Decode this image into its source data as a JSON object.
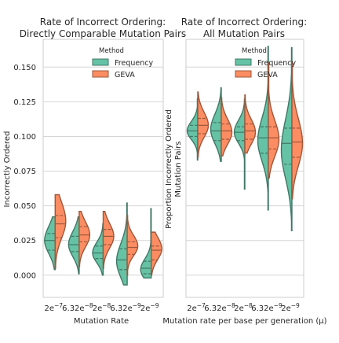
{
  "chart_data": [
    {
      "type": "violin",
      "split": true,
      "title_lines": [
        "Rate of Incorrect Ordering:",
        "Directly Comparable Mutation Pairs"
      ],
      "xlabel": "Mutation Rate",
      "ylabel": "Incorrectly Ordered",
      "categories": [
        "2e-7",
        "6.32e-8",
        "2e-8",
        "6.32e-9",
        "2e-9"
      ],
      "ylim": [
        -0.016,
        0.17
      ],
      "yticks": [
        "0.000",
        "0.025",
        "0.050",
        "0.075",
        "0.100",
        "0.125",
        "0.150"
      ],
      "ytick_values": [
        0.0,
        0.025,
        0.05,
        0.075,
        0.1,
        0.125,
        0.15
      ],
      "show_ytick_labels": true,
      "legend": {
        "title": "Method",
        "placement": "top-right"
      },
      "series": [
        {
          "name": "Frequency",
          "color": "#66c2a5",
          "violins": [
            {
              "min": 0.004,
              "q1": 0.018,
              "median": 0.025,
              "q3": 0.03,
              "max": 0.042,
              "mode": 0.025
            },
            {
              "min": 0.001,
              "q1": 0.017,
              "median": 0.022,
              "q3": 0.028,
              "max": 0.042,
              "mode": 0.022
            },
            {
              "min": 0.0,
              "q1": 0.012,
              "median": 0.016,
              "q3": 0.021,
              "max": 0.037,
              "mode": 0.016
            },
            {
              "min": -0.007,
              "q1": 0.004,
              "median": 0.011,
              "q3": 0.019,
              "max": 0.052,
              "mode": 0.01
            },
            {
              "min": -0.002,
              "q1": 0.001,
              "median": 0.005,
              "q3": 0.01,
              "max": 0.048,
              "mode": 0.004
            }
          ]
        },
        {
          "name": "GEVA",
          "color": "#fc8d62",
          "violins": [
            {
              "min": 0.005,
              "q1": 0.027,
              "median": 0.037,
              "q3": 0.043,
              "max": 0.058,
              "mode": 0.039
            },
            {
              "min": 0.006,
              "q1": 0.024,
              "median": 0.029,
              "q3": 0.035,
              "max": 0.046,
              "mode": 0.029
            },
            {
              "min": 0.005,
              "q1": 0.022,
              "median": 0.028,
              "q3": 0.033,
              "max": 0.046,
              "mode": 0.028
            },
            {
              "min": 0.0,
              "q1": 0.015,
              "median": 0.02,
              "q3": 0.024,
              "max": 0.043,
              "mode": 0.021
            },
            {
              "min": 0.0,
              "q1": 0.011,
              "median": 0.018,
              "q3": 0.021,
              "max": 0.031,
              "mode": 0.019
            }
          ]
        }
      ]
    },
    {
      "type": "violin",
      "split": true,
      "title_lines": [
        "Rate of Incorrect Ordering:",
        "All Mutation Pairs"
      ],
      "xlabel": "Mutation rate per base per generation (μ)",
      "ylabel_lines": [
        "Proportion Incorrectly Ordered",
        "Mutation Pairs"
      ],
      "categories": [
        "2e-7",
        "6.32e-8",
        "2e-8",
        "6.32e-9",
        "2e-9"
      ],
      "ylim": [
        -0.016,
        0.17
      ],
      "ytick_values": [
        0.0,
        0.025,
        0.05,
        0.075,
        0.1,
        0.125,
        0.15
      ],
      "show_ytick_labels": false,
      "legend": {
        "title": "Method",
        "placement": "top-right"
      },
      "series": [
        {
          "name": "Frequency",
          "color": "#66c2a5",
          "violins": [
            {
              "min": 0.083,
              "q1": 0.1,
              "median": 0.104,
              "q3": 0.108,
              "max": 0.127,
              "mode": 0.104
            },
            {
              "min": 0.082,
              "q1": 0.097,
              "median": 0.104,
              "q3": 0.11,
              "max": 0.135,
              "mode": 0.105
            },
            {
              "min": 0.062,
              "q1": 0.097,
              "median": 0.103,
              "q3": 0.107,
              "max": 0.127,
              "mode": 0.103
            },
            {
              "min": 0.047,
              "q1": 0.088,
              "median": 0.099,
              "q3": 0.107,
              "max": 0.165,
              "mode": 0.097
            },
            {
              "min": 0.032,
              "q1": 0.08,
              "median": 0.095,
              "q3": 0.106,
              "max": 0.164,
              "mode": 0.09
            }
          ]
        },
        {
          "name": "GEVA",
          "color": "#fc8d62",
          "violins": [
            {
              "min": 0.085,
              "q1": 0.102,
              "median": 0.108,
              "q3": 0.113,
              "max": 0.132,
              "mode": 0.108
            },
            {
              "min": 0.086,
              "q1": 0.098,
              "median": 0.104,
              "q3": 0.109,
              "max": 0.128,
              "mode": 0.103
            },
            {
              "min": 0.088,
              "q1": 0.098,
              "median": 0.104,
              "q3": 0.109,
              "max": 0.13,
              "mode": 0.103
            },
            {
              "min": 0.07,
              "q1": 0.091,
              "median": 0.099,
              "q3": 0.107,
              "max": 0.153,
              "mode": 0.098
            },
            {
              "min": 0.055,
              "q1": 0.085,
              "median": 0.096,
              "q3": 0.106,
              "max": 0.153,
              "mode": 0.095
            }
          ]
        }
      ]
    }
  ]
}
